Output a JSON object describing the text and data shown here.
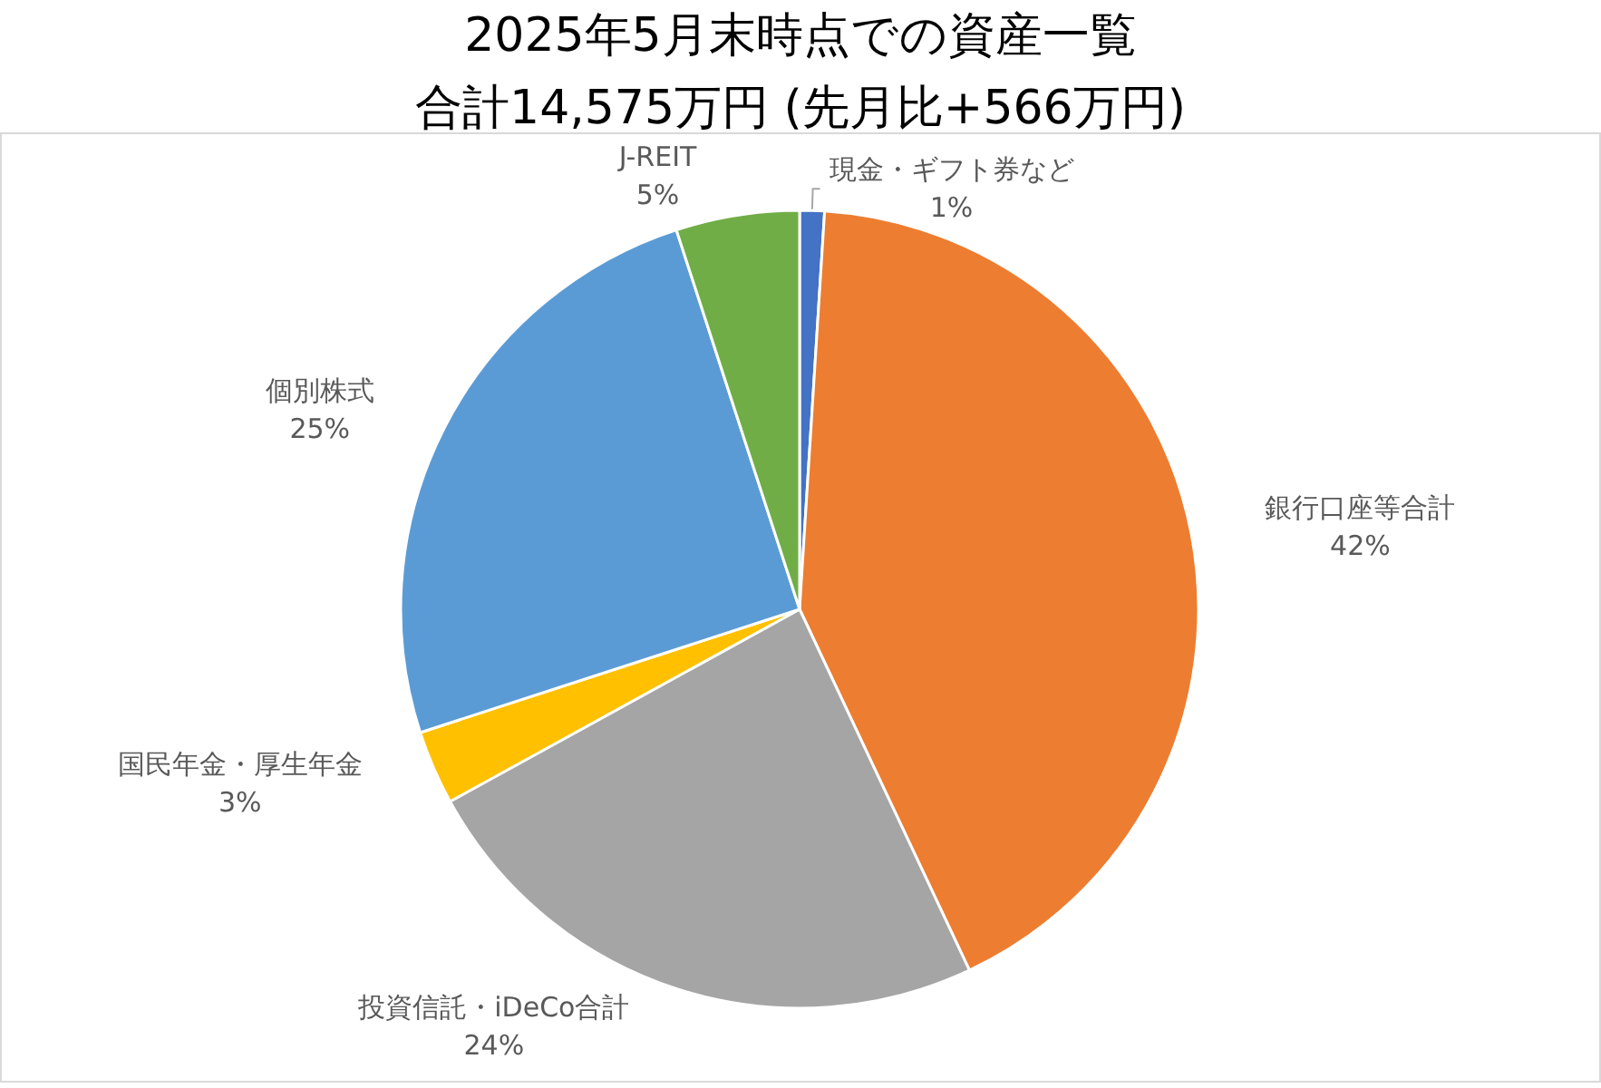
{
  "chart_data": {
    "type": "pie",
    "title": "2025年5月末時点での資産一覧",
    "subtitle": "合計14,575万円 (先月比+566万円)",
    "categories": [
      "現金・ギフト券など",
      "銀行口座等合計",
      "投資信託・iDeCo合計",
      "国民年金・厚生年金",
      "個別株式",
      "J-REIT"
    ],
    "values": [
      1,
      42,
      24,
      3,
      25,
      5
    ],
    "value_labels": [
      "1%",
      "42%",
      "24%",
      "3%",
      "25%",
      "5%"
    ],
    "colors": [
      "#4472c4",
      "#ed7d31",
      "#a5a5a5",
      "#ffc000",
      "#5b9bd5",
      "#70ad47"
    ],
    "legend": false
  }
}
